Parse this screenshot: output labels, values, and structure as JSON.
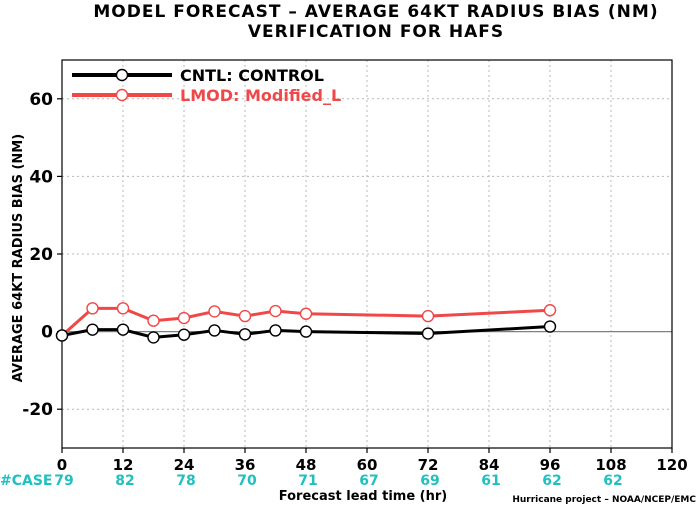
{
  "chart_data": {
    "type": "line",
    "title_line1": "MODEL FORECAST – AVERAGE 64KT RADIUS BIAS (NM)",
    "title_line2": "VERIFICATION FOR HAFS",
    "ylabel": "AVERAGE 64KT RADIUS BIAS (NM)",
    "xlabel": "Forecast lead time (hr)",
    "xlim": [
      0,
      120
    ],
    "ylim": [
      -30,
      70
    ],
    "xticks": [
      0,
      12,
      24,
      36,
      48,
      60,
      72,
      84,
      96,
      108,
      120
    ],
    "yticks": [
      -20,
      0,
      20,
      40,
      60
    ],
    "grid": true,
    "legend_position": "top-left",
    "case_label": "#CASE",
    "case_hours": [
      0,
      12,
      24,
      36,
      48,
      60,
      72,
      84,
      96,
      108
    ],
    "case_counts": [
      "79",
      "82",
      "78",
      "70",
      "71",
      "67",
      "69",
      "61",
      "62",
      "62"
    ],
    "series": [
      {
        "name": "CNTL: CONTROL",
        "color": "#000000",
        "x": [
          0,
          6,
          12,
          18,
          24,
          30,
          36,
          42,
          48,
          72,
          96
        ],
        "y": [
          -1.0,
          0.5,
          0.5,
          -1.5,
          -0.8,
          0.3,
          -0.7,
          0.3,
          0.0,
          -0.5,
          1.3
        ]
      },
      {
        "name": "LMOD: Modified_L",
        "color": "#f04848",
        "x": [
          0,
          6,
          12,
          18,
          24,
          30,
          36,
          42,
          48,
          72,
          96
        ],
        "y": [
          -1.0,
          6.0,
          6.0,
          2.8,
          3.5,
          5.2,
          4.0,
          5.3,
          4.6,
          4.0,
          5.5
        ]
      }
    ]
  },
  "credit": "Hurricane project – NOAA/NCEP/EMC",
  "colors": {
    "case": "#20c0c0",
    "grid": "#b8b8b8",
    "zero_line": "#808080"
  }
}
